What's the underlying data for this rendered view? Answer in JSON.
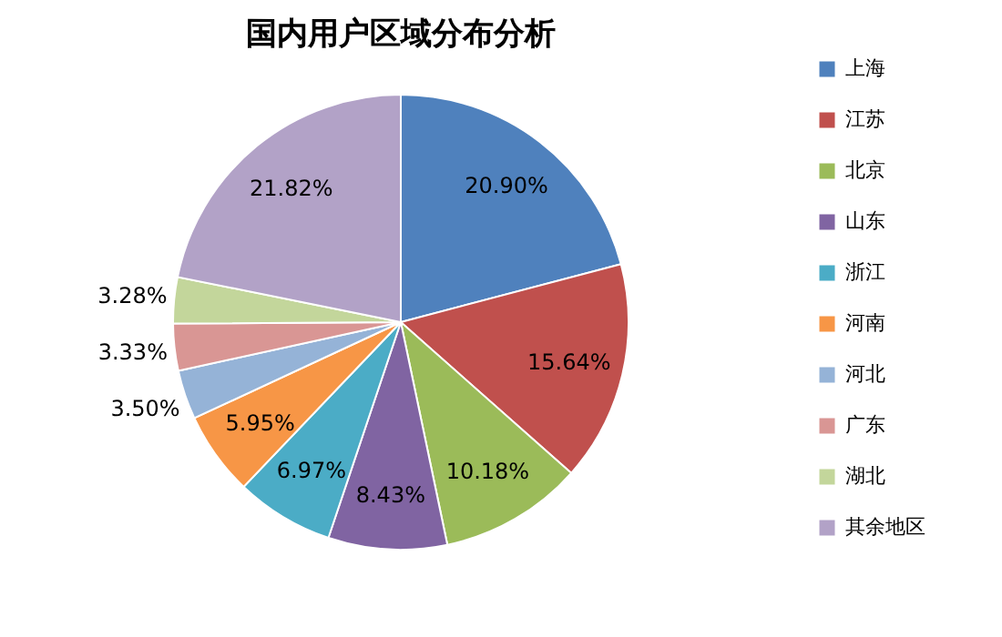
{
  "chart_data": {
    "type": "pie",
    "title": "国内用户区域分布分析",
    "categories": [
      "上海",
      "江苏",
      "北京",
      "山东",
      "浙江",
      "河南",
      "河北",
      "广东",
      "湖北",
      "其余地区"
    ],
    "values": [
      20.9,
      15.64,
      10.18,
      8.43,
      6.97,
      5.95,
      3.5,
      3.33,
      3.28,
      21.82
    ],
    "value_labels": [
      "20.90%",
      "15.64%",
      "10.18%",
      "8.43%",
      "6.97%",
      "5.95%",
      "3.50%",
      "3.33%",
      "3.28%",
      "21.82%"
    ],
    "colors": [
      "#4f81bd",
      "#c0504d",
      "#9bbb59",
      "#8064a2",
      "#4bacc6",
      "#f79646",
      "#95b3d7",
      "#d99694",
      "#c3d69b",
      "#b2a2c7"
    ],
    "legend": "right"
  }
}
